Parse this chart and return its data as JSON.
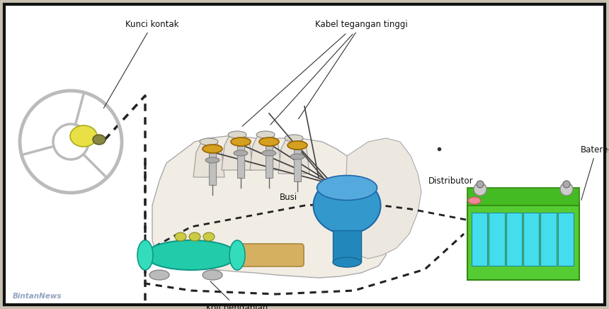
{
  "background_color": "#faf8f4",
  "border_color": "#111111",
  "border_linewidth": 3,
  "outer_bg": "#c8c0b0",
  "inner_bg": "#ffffff",
  "labels": {
    "kunci_kontak": "Kunci kontak",
    "kabel_tegangan": "Kabel tegangan tinggi",
    "distributor": "Distributor",
    "batere": "Batere-",
    "busi": "Busi",
    "koil_pengapian": "Koil pengapian"
  },
  "label_fontsize": 8.5,
  "watermark": "BintanNews",
  "fig_width": 8.6,
  "fig_height": 4.36,
  "dpi": 100
}
